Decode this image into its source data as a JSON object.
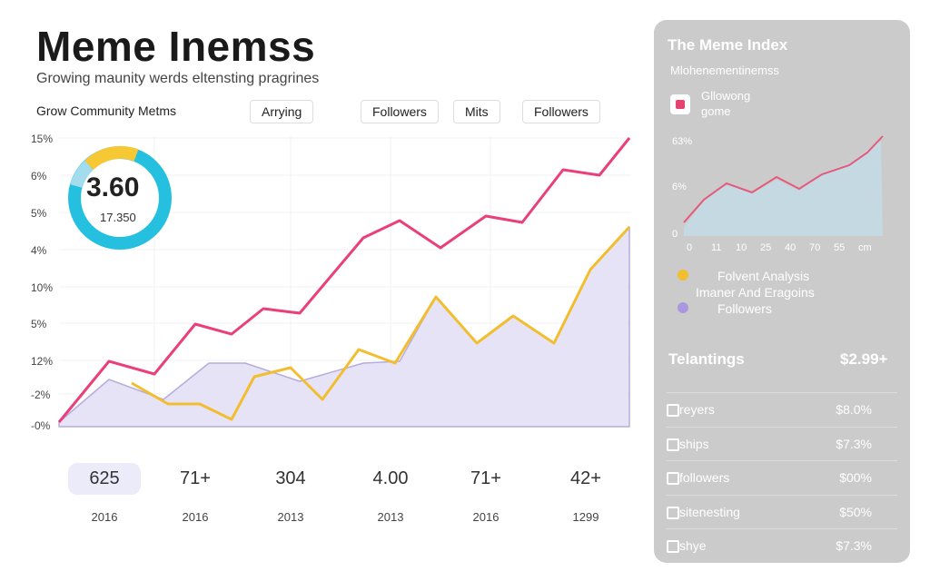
{
  "header": {
    "title": "Meme Inemss",
    "subtitle": "Growing maunity werds eltensting pragrines"
  },
  "toolbar": {
    "label": "Grow Community Metms",
    "tabs": [
      "Arrying",
      "Followers",
      "Mits",
      "Followers"
    ]
  },
  "chart": {
    "y_labels": [
      "15%",
      "6%",
      "5%",
      "4%",
      "10%",
      "5%",
      "12%",
      "-2%",
      "-0%"
    ]
  },
  "gauge": {
    "value": "3.60",
    "sublabel": "17.350"
  },
  "stats": [
    {
      "value": "625",
      "year": "2016"
    },
    {
      "value": "71+",
      "year": "2016"
    },
    {
      "value": "304",
      "year": "2013"
    },
    {
      "value": "4.00",
      "year": "2013"
    },
    {
      "value": "71+",
      "year": "2016"
    },
    {
      "value": "42+",
      "year": "1299"
    }
  ],
  "sidebar": {
    "title": "The Meme Index",
    "subtitle": "Mlohenementinemss",
    "card": [
      "Gllowong",
      "gome"
    ],
    "mini_y_labels": [
      "63%",
      "6%",
      "0"
    ],
    "mini_x_labels": [
      "0",
      "11",
      "10",
      "25",
      "40",
      "70",
      "55",
      "cm"
    ],
    "legend": [
      "Folvent Analysis",
      "Imaner And Eragoins",
      "Followers"
    ],
    "section": {
      "title": "Telantings",
      "value": "$2.99+"
    },
    "rows": [
      [
        "reyers",
        "$8.0%"
      ],
      [
        "ships",
        "$7.3%"
      ],
      [
        "followers",
        "$00%"
      ],
      [
        "sitenesting",
        "$50%"
      ],
      [
        "shye",
        "$7.3%"
      ]
    ]
  }
}
